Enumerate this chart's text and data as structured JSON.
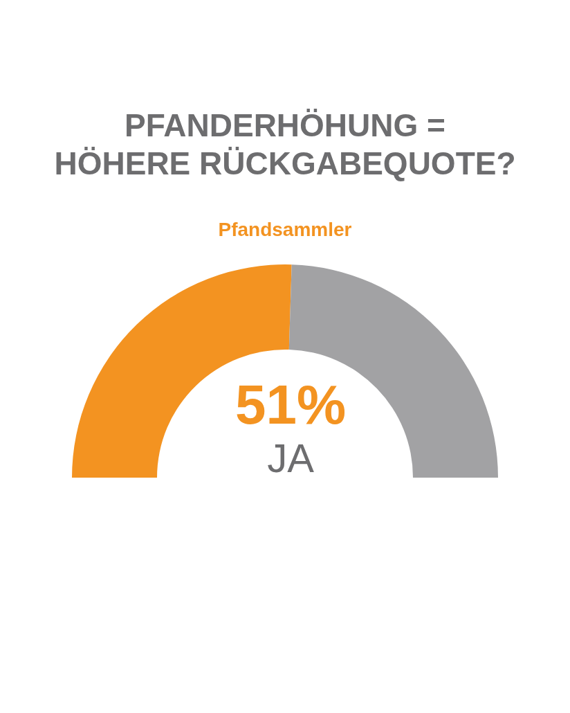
{
  "chart_data": {
    "type": "donut",
    "title": "PFANDERHÖHUNG = HÖHERE RÜCKGABEQUOTE?",
    "subtitle": "Pfandsammler",
    "categories": [
      "JA",
      null
    ],
    "values": [
      51,
      49
    ],
    "colors": [
      "#f39321",
      "#a2a2a4"
    ],
    "value_labels": [
      "51%",
      null
    ]
  }
}
